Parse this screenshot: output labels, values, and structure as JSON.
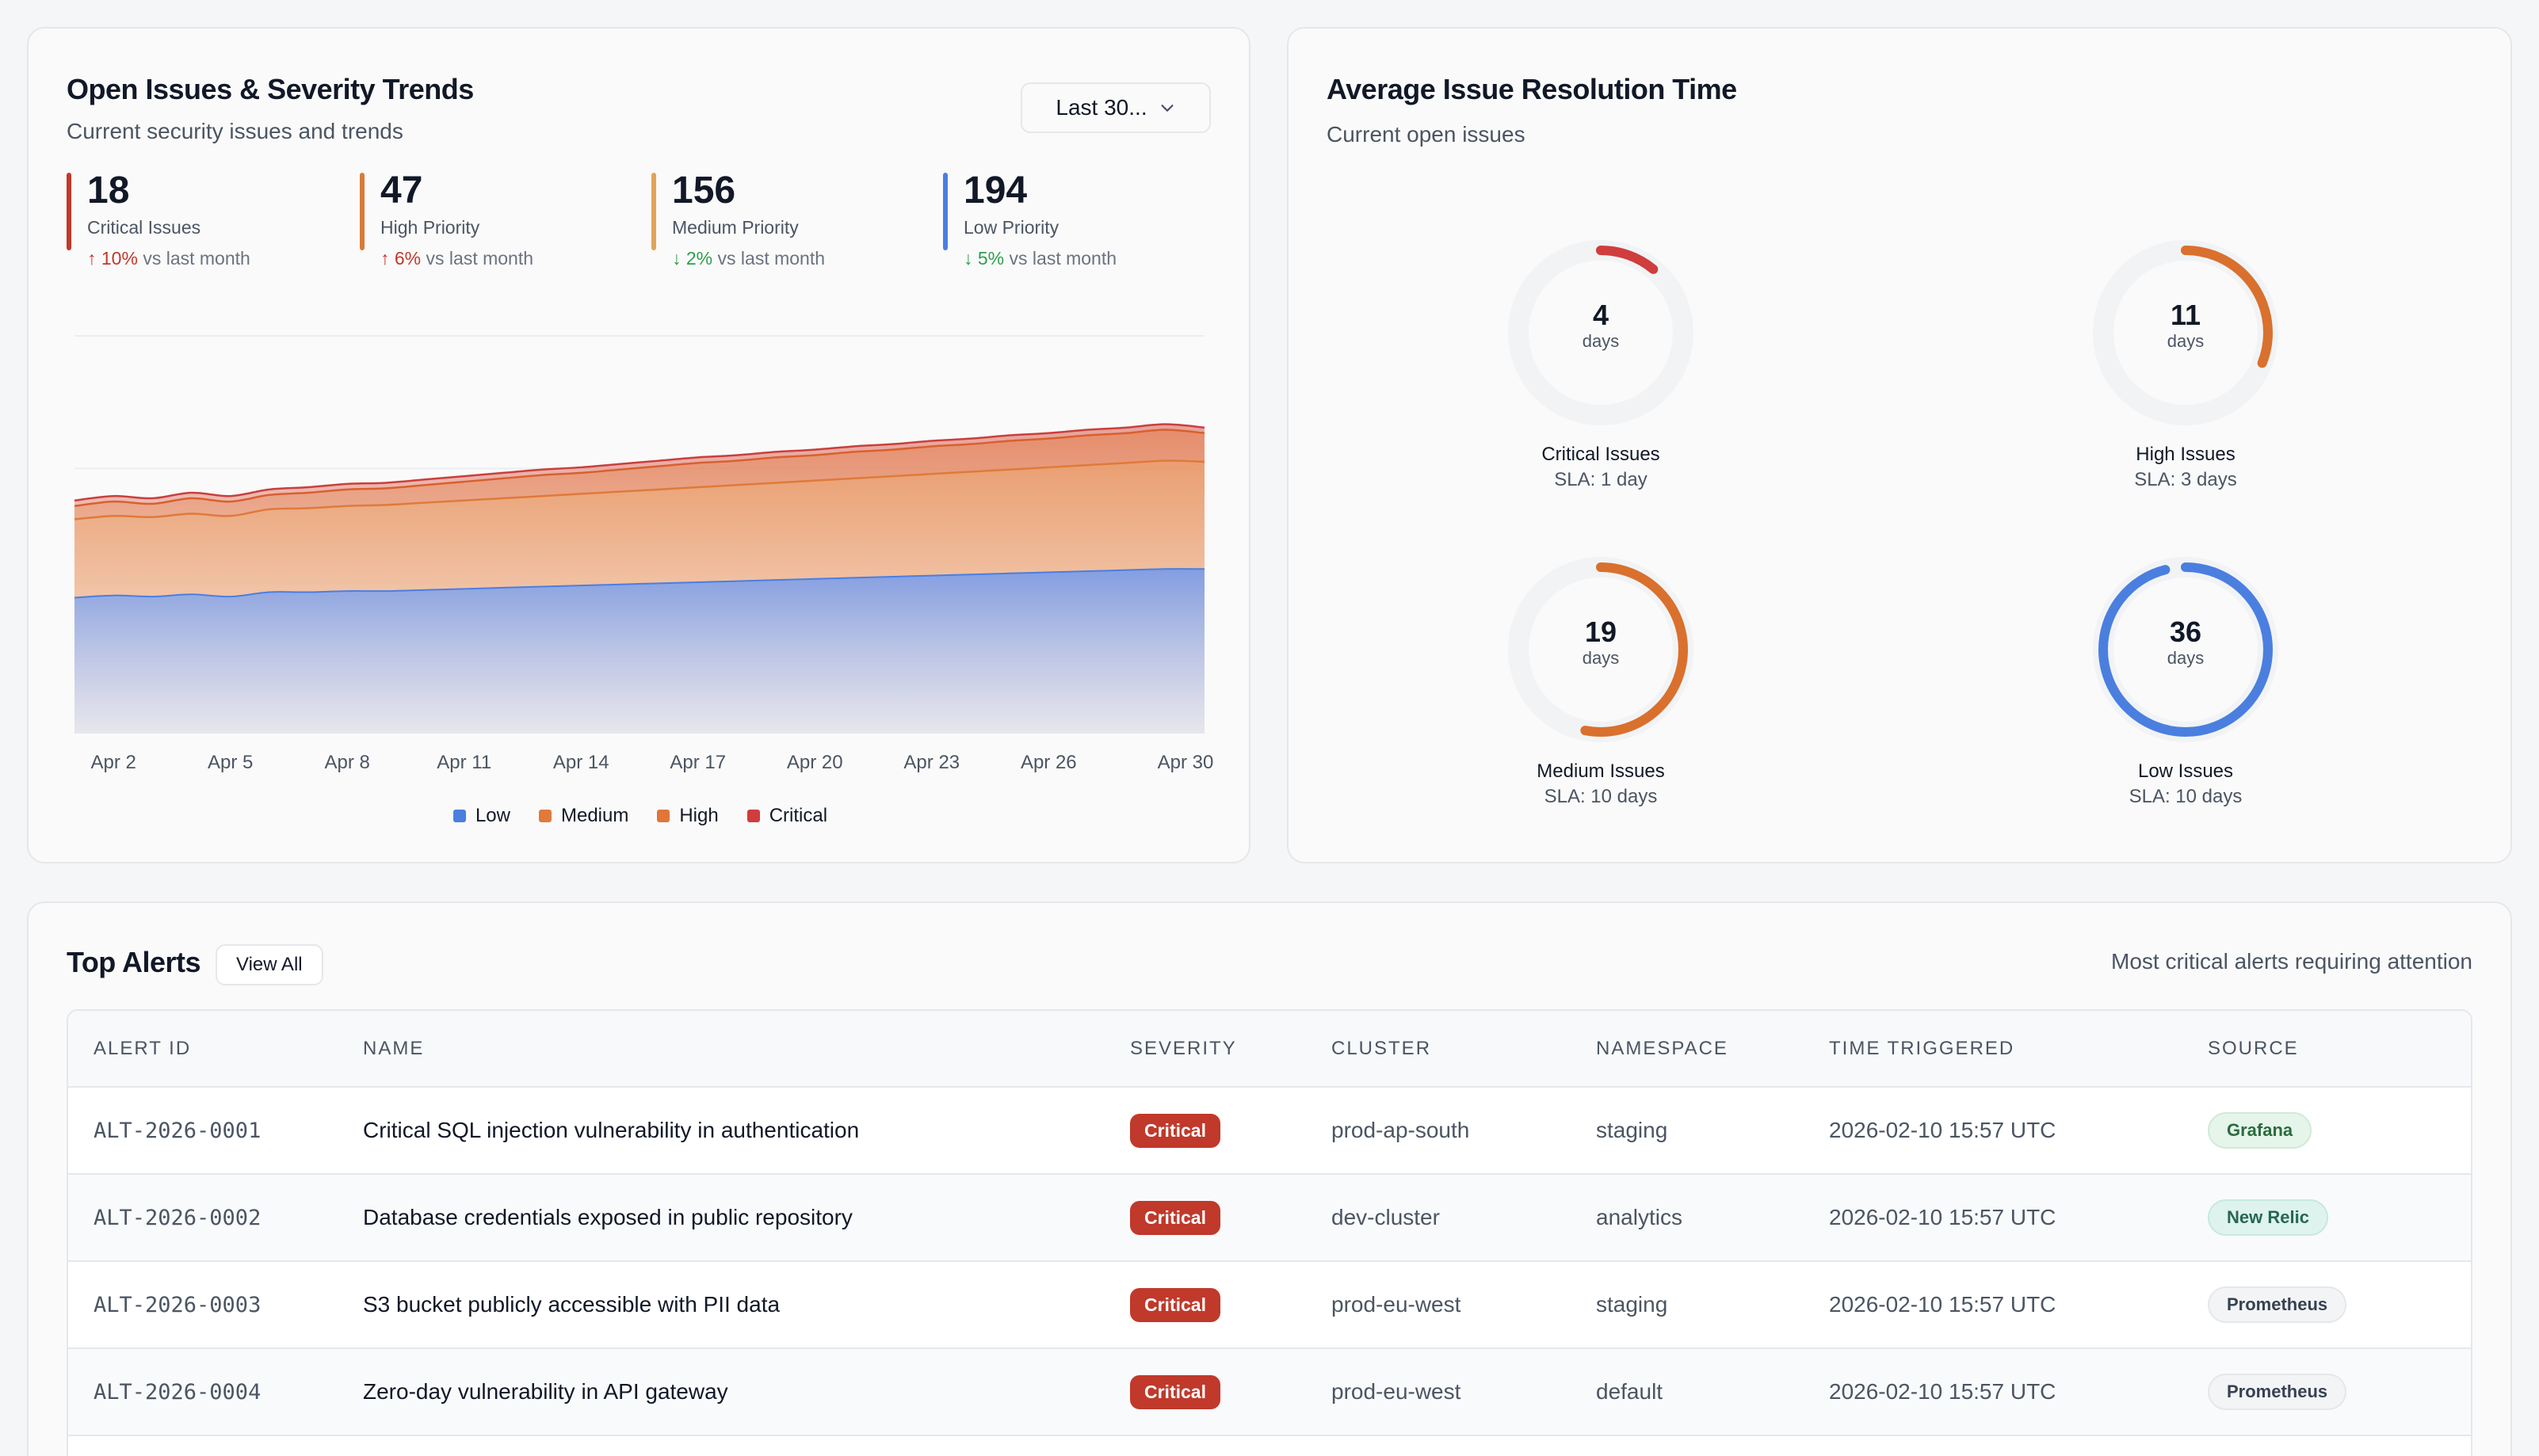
{
  "trends": {
    "title": "Open Issues & Severity Trends",
    "subtitle": "Current security issues and trends",
    "range": "Last 30...",
    "stats": [
      {
        "value": "18",
        "label": "Critical Issues",
        "change": "10%",
        "direction": "up",
        "suffix": "vs last month",
        "color": "#c0392b"
      },
      {
        "value": "47",
        "label": "High Priority",
        "change": "6%",
        "direction": "up",
        "suffix": "vs last month",
        "color": "#d97b3a"
      },
      {
        "value": "156",
        "label": "Medium Priority",
        "change": "2%",
        "direction": "down",
        "suffix": "vs last month",
        "color": "#e0a35a"
      },
      {
        "value": "194",
        "label": "Low Priority",
        "change": "5%",
        "direction": "down",
        "suffix": "vs last month",
        "color": "#4a7fe0"
      }
    ],
    "legend": [
      {
        "label": "Low",
        "color": "#4a7fe0"
      },
      {
        "label": "Medium",
        "color": "#e07a3a"
      },
      {
        "label": "High",
        "color": "#e0763a"
      },
      {
        "label": "Critical",
        "color": "#cf3d3d"
      }
    ]
  },
  "chart_data": {
    "type": "area",
    "x_ticks": [
      "Apr 2",
      "Apr 5",
      "Apr 8",
      "Apr 11",
      "Apr 14",
      "Apr 17",
      "Apr 20",
      "Apr 23",
      "Apr 26",
      "Apr 30"
    ],
    "days": [
      1,
      2,
      3,
      4,
      5,
      6,
      7,
      8,
      9,
      10,
      11,
      12,
      13,
      14,
      15,
      16,
      17,
      18,
      19,
      20,
      21,
      22,
      23,
      24,
      25,
      26,
      27,
      28,
      29,
      30
    ],
    "series": [
      {
        "name": "Low",
        "color": "#4a7fe0",
        "values": [
          123,
          125,
          124,
          126,
          124,
          128,
          128,
          129,
          129,
          130,
          131,
          132,
          133,
          134,
          135,
          136,
          137,
          138,
          139,
          140,
          141,
          142,
          143,
          144,
          145,
          146,
          147,
          148,
          149,
          149
        ]
      },
      {
        "name": "Medium",
        "color": "#e07a3a",
        "values": [
          194,
          197,
          196,
          199,
          197,
          203,
          204,
          206,
          207,
          209,
          211,
          213,
          215,
          217,
          219,
          221,
          223,
          225,
          227,
          229,
          231,
          233,
          235,
          237,
          239,
          241,
          243,
          245,
          247,
          246
        ]
      },
      {
        "name": "High",
        "color": "#e0763a",
        "values": [
          206,
          210,
          208,
          213,
          210,
          216,
          218,
          221,
          222,
          225,
          228,
          231,
          234,
          236,
          239,
          242,
          245,
          247,
          250,
          252,
          255,
          257,
          260,
          262,
          265,
          267,
          270,
          272,
          275,
          272
        ]
      },
      {
        "name": "Critical",
        "color": "#cf3d3d",
        "values": [
          211,
          215,
          213,
          218,
          215,
          221,
          223,
          226,
          227,
          230,
          233,
          236,
          239,
          241,
          244,
          247,
          250,
          252,
          255,
          257,
          260,
          262,
          265,
          267,
          270,
          272,
          275,
          277,
          280,
          277
        ]
      }
    ],
    "ylim": [
      0,
      360
    ],
    "grid": true,
    "legend_position": "bottom"
  },
  "resolution": {
    "title": "Average Issue Resolution Time",
    "subtitle": "Current open issues",
    "items": [
      {
        "value": "4",
        "unit": "days",
        "label": "Critical Issues",
        "sla": "SLA: 1 day",
        "color": "#cf3d3d",
        "progress": 0.11
      },
      {
        "value": "11",
        "unit": "days",
        "label": "High Issues",
        "sla": "SLA: 3 days",
        "color": "#d9702e",
        "progress": 0.31
      },
      {
        "value": "19",
        "unit": "days",
        "label": "Medium Issues",
        "sla": "SLA: 10 days",
        "color": "#d9702e",
        "progress": 0.53
      },
      {
        "value": "36",
        "unit": "days",
        "label": "Low Issues",
        "sla": "SLA: 10 days",
        "color": "#4a7fe0",
        "progress": 0.96
      }
    ]
  },
  "alerts": {
    "title": "Top Alerts",
    "view_all": "View All",
    "subtitle": "Most critical alerts requiring attention",
    "columns": [
      "ALERT ID",
      "NAME",
      "SEVERITY",
      "CLUSTER",
      "NAMESPACE",
      "TIME TRIGGERED",
      "SOURCE"
    ],
    "rows": [
      {
        "id": "ALT-2026-0001",
        "name": "Critical SQL injection vulnerability in authentication",
        "severity": "Critical",
        "cluster": "prod-ap-south",
        "namespace": "staging",
        "time": "2026-02-10 15:57 UTC",
        "source": "Grafana"
      },
      {
        "id": "ALT-2026-0002",
        "name": "Database credentials exposed in public repository",
        "severity": "Critical",
        "cluster": "dev-cluster",
        "namespace": "analytics",
        "time": "2026-02-10 15:57 UTC",
        "source": "New Relic"
      },
      {
        "id": "ALT-2026-0003",
        "name": "S3 bucket publicly accessible with PII data",
        "severity": "Critical",
        "cluster": "prod-eu-west",
        "namespace": "staging",
        "time": "2026-02-10 15:57 UTC",
        "source": "Prometheus"
      },
      {
        "id": "ALT-2026-0004",
        "name": "Zero-day vulnerability in API gateway",
        "severity": "Critical",
        "cluster": "prod-eu-west",
        "namespace": "default",
        "time": "2026-02-10 15:57 UTC",
        "source": "Prometheus"
      }
    ]
  }
}
